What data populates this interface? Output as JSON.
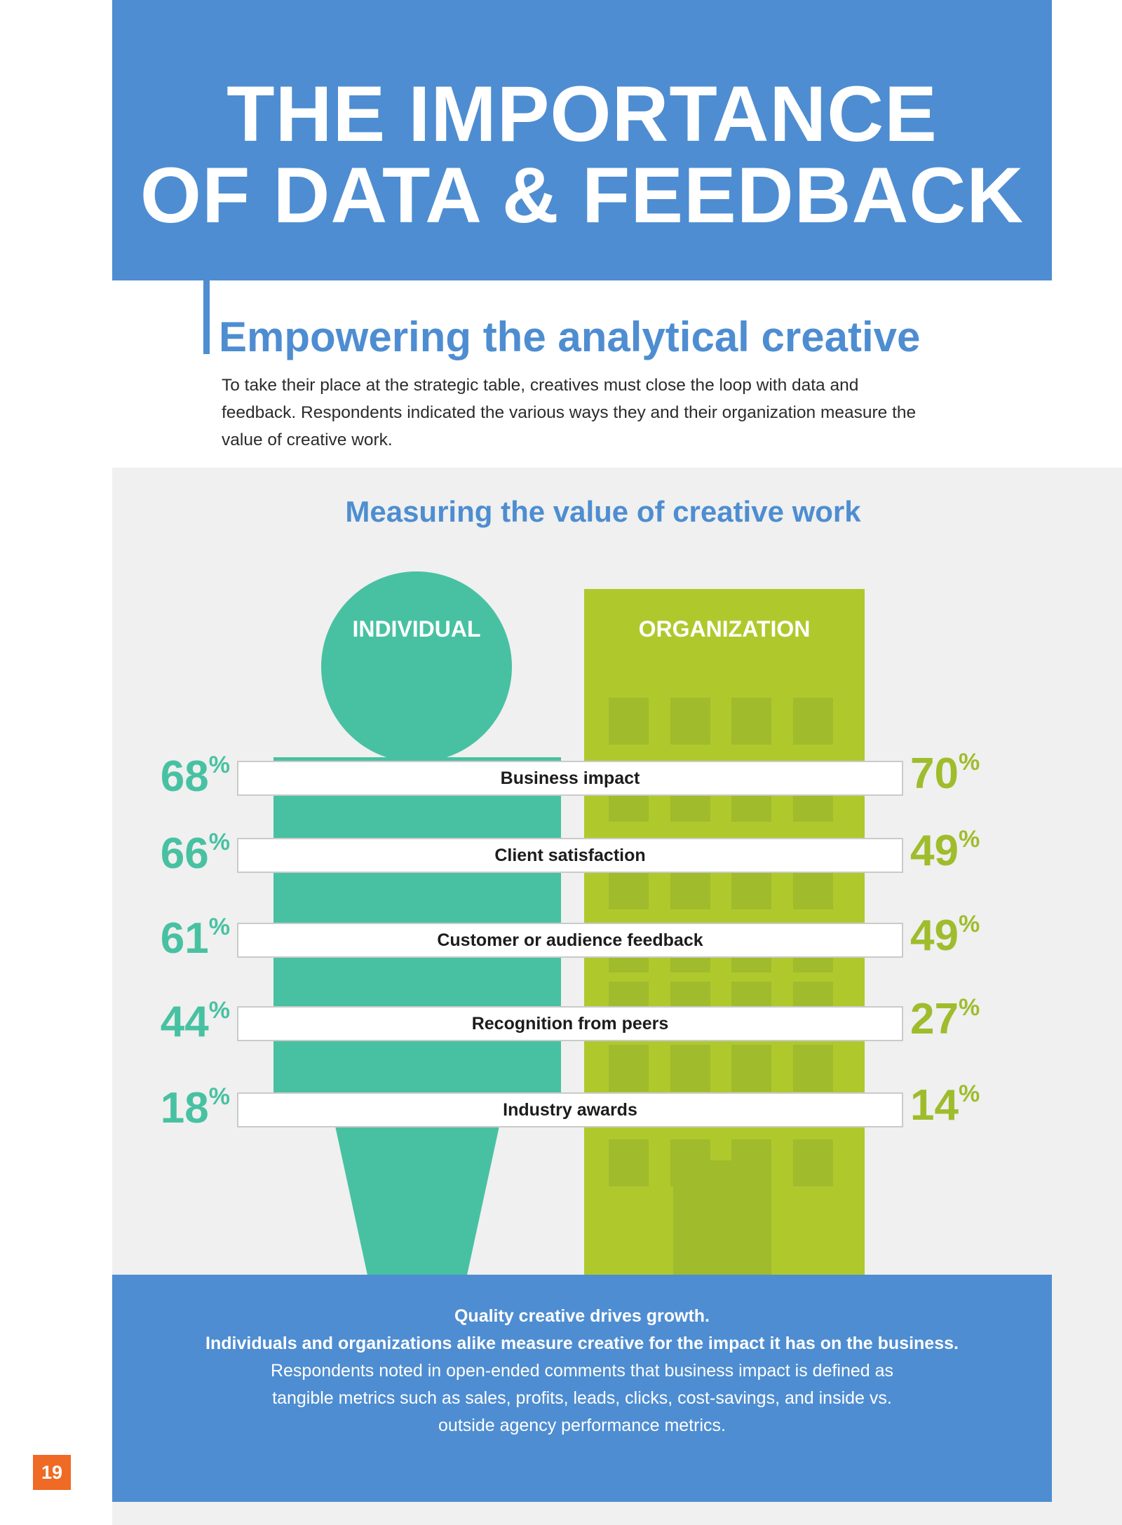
{
  "header": {
    "title_line1": "THE IMPORTANCE",
    "title_line2": "OF DATA & FEEDBACK"
  },
  "section": {
    "heading": "Empowering the analytical creative",
    "intro": "To take their place at the strategic table, creatives must close the loop with data and feedback. Respondents indicated the various ways they and their organization measure the value of creative work."
  },
  "chart_data": {
    "type": "bar",
    "title": "Measuring the value of creative work",
    "categories": [
      "Business impact",
      "Client satisfaction",
      "Customer or audience feedback",
      "Recognition from peers",
      "Industry awards"
    ],
    "series": [
      {
        "name": "INDIVIDUAL",
        "values": [
          68,
          66,
          61,
          44,
          18
        ]
      },
      {
        "name": "ORGANIZATION",
        "values": [
          70,
          49,
          49,
          27,
          14
        ]
      }
    ],
    "unit": "%",
    "colors": {
      "individual": "#48c1a2",
      "organization": "#afc92d"
    }
  },
  "footer": {
    "line1": "Quality creative drives growth.",
    "line2": "Individuals and organizations alike measure creative for the impact it has on the business.",
    "body": "Respondents noted in open-ended comments that business impact is defined as tangible metrics such as sales, profits, leads, clicks, cost-savings, and inside vs. outside agency performance metrics."
  },
  "page_number": "19",
  "colors": {
    "brand_blue": "#4e8dd1",
    "page_orange": "#ef6a24"
  }
}
